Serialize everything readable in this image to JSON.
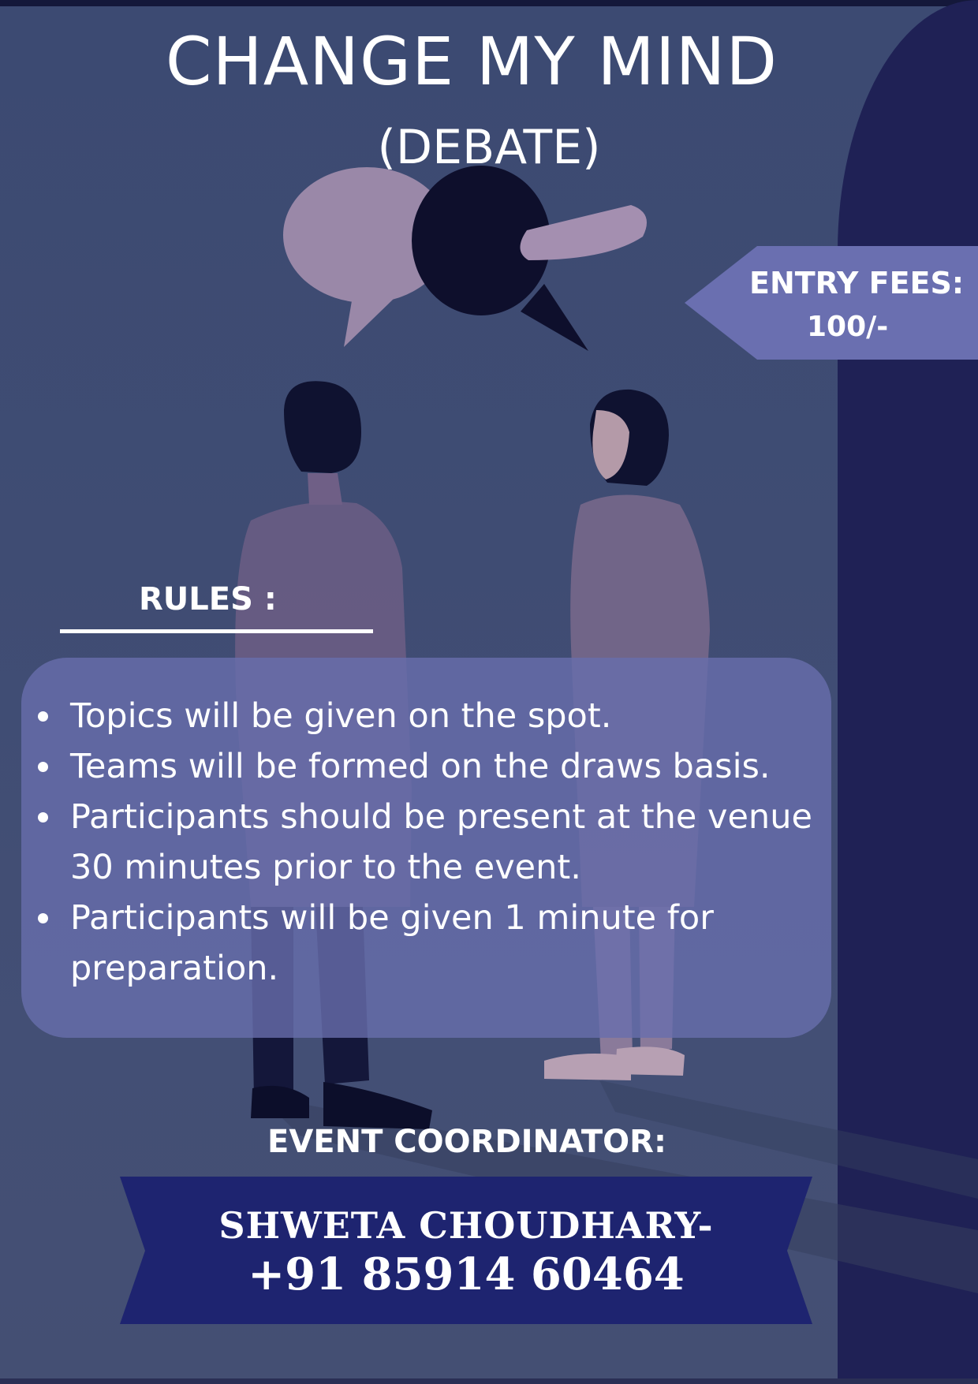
{
  "poster": {
    "title": "CHANGE MY MIND",
    "subtitle": "(DEBATE)"
  },
  "entry_fees": {
    "label": "ENTRY FEES:",
    "amount": "100/-"
  },
  "rules": {
    "heading": "RULES :",
    "items": [
      "Topics will be given on the spot.",
      "Teams will be formed on the  draws basis.",
      "Participants should be present at the venue 30 minutes prior to the event.",
      "Participants will be given 1 minute for preparation."
    ]
  },
  "coordinator": {
    "heading": "EVENT COORDINATOR:",
    "name": "SHWETA CHOUDHARY-",
    "phone": "+91 85914 60464"
  },
  "colors": {
    "background": "#3f4c73",
    "side_panel": "#1f2155",
    "fees_tag": "#6a6fb0",
    "rules_box": "#686eac",
    "banner": "#1e2470",
    "text": "#ffffff"
  },
  "icons": [
    "speech-bubble-icon",
    "hugging-speech-bubble-icon"
  ]
}
